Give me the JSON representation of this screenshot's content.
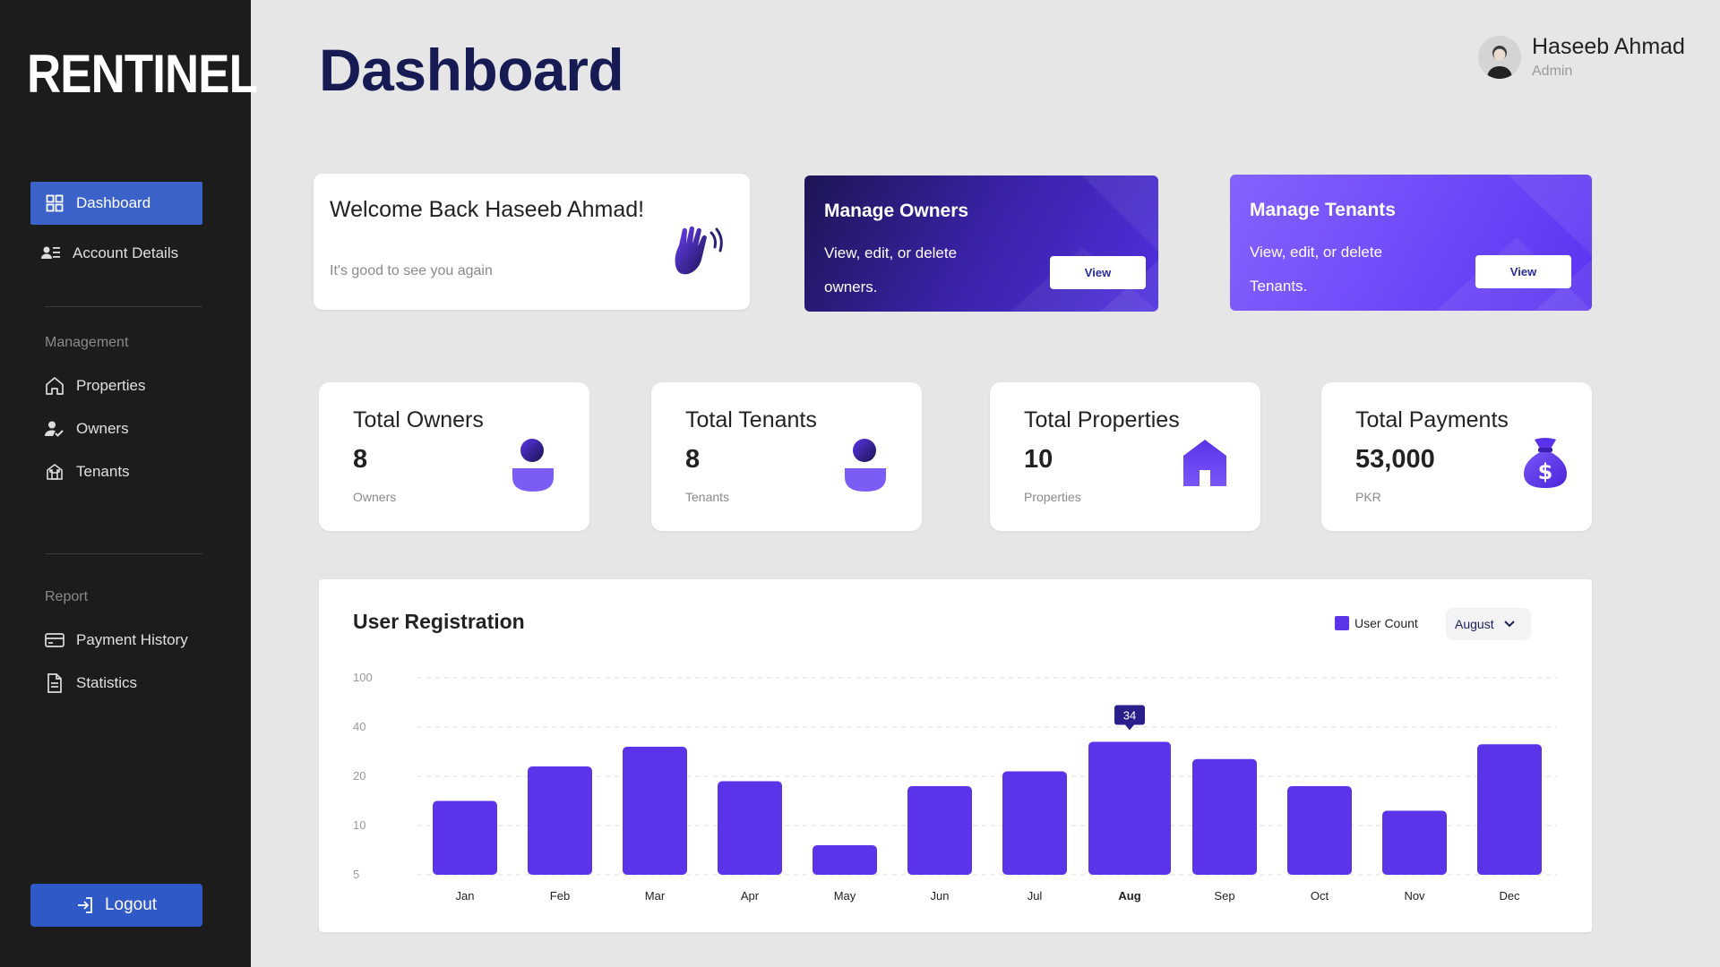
{
  "app": {
    "logo": "RENTINEL"
  },
  "sidebar": {
    "items": [
      {
        "label": "Dashboard",
        "icon": "grid-icon",
        "active": true
      },
      {
        "label": "Account Details",
        "icon": "user-list-icon"
      }
    ],
    "management": {
      "label": "Management",
      "items": [
        {
          "label": "Properties",
          "icon": "home-icon"
        },
        {
          "label": "Owners",
          "icon": "user-check-icon"
        },
        {
          "label": "Tenants",
          "icon": "building-icon"
        }
      ]
    },
    "report": {
      "label": "Report",
      "items": [
        {
          "label": "Payment History",
          "icon": "credit-card-icon"
        },
        {
          "label": "Statistics",
          "icon": "document-icon"
        }
      ]
    },
    "logout_label": "Logout"
  },
  "header": {
    "title": "Dashboard",
    "user_name": "Haseeb Ahmad",
    "user_role": "Admin"
  },
  "welcome": {
    "title": "Welcome Back Haseeb Ahmad!",
    "subtitle": "It's good to see you again"
  },
  "manage_owners": {
    "title": "Manage Owners",
    "description": "View, edit, or delete owners.",
    "button": "View"
  },
  "manage_tenants": {
    "title": "Manage Tenants",
    "description": "View, edit, or delete Tenants.",
    "button": "View"
  },
  "stats": [
    {
      "label": "Total Owners",
      "value": "8",
      "unit": "Owners",
      "icon": "person-icon"
    },
    {
      "label": "Total Tenants",
      "value": "8",
      "unit": "Tenants",
      "icon": "person-icon"
    },
    {
      "label": "Total Properties",
      "value": "10",
      "unit": "Properties",
      "icon": "house-icon"
    },
    {
      "label": "Total Payments",
      "value": "53,000",
      "unit": "PKR",
      "icon": "money-bag-icon"
    }
  ],
  "colors": {
    "accent": "#5b33e8",
    "primary_dark": "#171b54",
    "sidebar_active": "#3a62c9"
  },
  "chart": {
    "legend_label": "User Count",
    "selected_month": "August"
  },
  "chart_data": {
    "type": "bar",
    "title": "User Registration",
    "categories": [
      "Jan",
      "Feb",
      "Mar",
      "Apr",
      "May",
      "Jun",
      "Jul",
      "Aug",
      "Sep",
      "Oct",
      "Nov",
      "Dec"
    ],
    "series": [
      {
        "name": "User Count",
        "values": [
          15,
          24,
          32,
          19,
          8,
          18,
          22,
          34,
          27,
          18,
          13,
          33
        ]
      }
    ],
    "y_ticks": [
      "100",
      "40",
      "20",
      "10",
      "5"
    ],
    "highlight": {
      "category": "Aug",
      "label": "34"
    },
    "grid": true,
    "legend": "top-right"
  }
}
